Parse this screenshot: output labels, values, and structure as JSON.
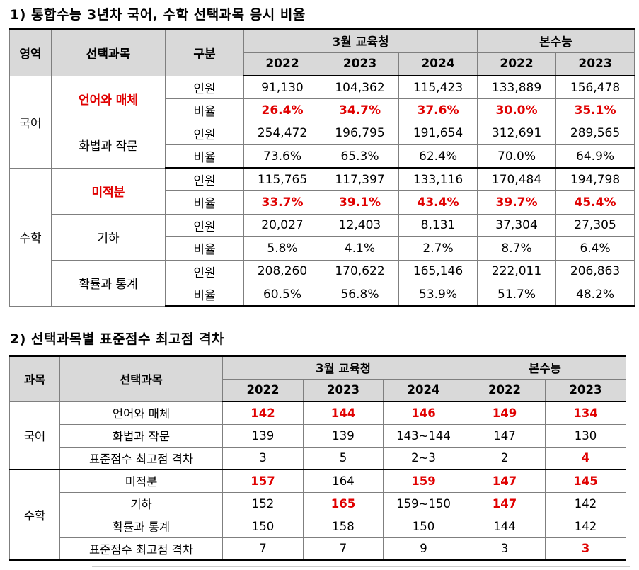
{
  "section1": {
    "title": "1) 통합수능 3년차 국어, 수학 선택과목 응시 비율",
    "headers": {
      "area": "영역",
      "subject": "선택과목",
      "type": "구분",
      "group_march": "3월 교육청",
      "group_csat": "본수능",
      "years": [
        "2022",
        "2023",
        "2024",
        "2022",
        "2023"
      ]
    },
    "korean": {
      "area": "국어",
      "subjects": [
        {
          "name": "언어와 매체",
          "highlight": true,
          "count_label": "인원",
          "counts": [
            "91,130",
            "104,362",
            "115,423",
            "133,889",
            "156,478"
          ],
          "ratio_label": "비율",
          "ratios": [
            "26.4%",
            "34.7%",
            "37.6%",
            "30.0%",
            "35.1%"
          ],
          "ratio_highlight": true
        },
        {
          "name": "화법과 작문",
          "highlight": false,
          "count_label": "인원",
          "counts": [
            "254,472",
            "196,795",
            "191,654",
            "312,691",
            "289,565"
          ],
          "ratio_label": "비율",
          "ratios": [
            "73.6%",
            "65.3%",
            "62.4%",
            "70.0%",
            "64.9%"
          ],
          "ratio_highlight": false
        }
      ]
    },
    "math": {
      "area": "수학",
      "subjects": [
        {
          "name": "미적분",
          "highlight": true,
          "count_label": "인원",
          "counts": [
            "115,765",
            "117,397",
            "133,116",
            "170,484",
            "194,798"
          ],
          "ratio_label": "비율",
          "ratios": [
            "33.7%",
            "39.1%",
            "43.4%",
            "39.7%",
            "45.4%"
          ],
          "ratio_highlight": true
        },
        {
          "name": "기하",
          "highlight": false,
          "count_label": "인원",
          "counts": [
            "20,027",
            "12,403",
            "8,131",
            "37,304",
            "27,305"
          ],
          "ratio_label": "비율",
          "ratios": [
            "5.8%",
            "4.1%",
            "2.7%",
            "8.7%",
            "6.4%"
          ],
          "ratio_highlight": false
        },
        {
          "name": "확률과 통계",
          "highlight": false,
          "count_label": "인원",
          "counts": [
            "208,260",
            "170,622",
            "165,146",
            "222,011",
            "206,863"
          ],
          "ratio_label": "비율",
          "ratios": [
            "60.5%",
            "56.8%",
            "53.9%",
            "51.7%",
            "48.2%"
          ],
          "ratio_highlight": false
        }
      ]
    }
  },
  "section2": {
    "title": "2) 선택과목별 표준점수 최고점 격차",
    "headers": {
      "area": "과목",
      "subject": "선택과목",
      "group_march": "3월 교육청",
      "group_csat": "본수능",
      "years": [
        "2022",
        "2023",
        "2024",
        "2022",
        "2023"
      ]
    },
    "korean": {
      "area": "국어",
      "rows": [
        {
          "name": "언어와 매체",
          "values": [
            "142",
            "144",
            "146",
            "149",
            "134"
          ],
          "red": [
            true,
            true,
            true,
            true,
            true
          ]
        },
        {
          "name": "화법과 작문",
          "values": [
            "139",
            "139",
            "143~144",
            "147",
            "130"
          ],
          "red": [
            false,
            false,
            false,
            false,
            false
          ]
        },
        {
          "name": "표준점수 최고점 격차",
          "values": [
            "3",
            "5",
            "2~3",
            "2",
            "4"
          ],
          "red": [
            false,
            false,
            false,
            false,
            true
          ]
        }
      ]
    },
    "math": {
      "area": "수학",
      "rows": [
        {
          "name": "미적분",
          "values": [
            "157",
            "164",
            "159",
            "147",
            "145"
          ],
          "red": [
            true,
            false,
            true,
            true,
            true
          ]
        },
        {
          "name": "기하",
          "values": [
            "152",
            "165",
            "159~150",
            "147",
            "142"
          ],
          "red": [
            false,
            true,
            false,
            true,
            false
          ]
        },
        {
          "name": "확률과 통계",
          "values": [
            "150",
            "158",
            "150",
            "144",
            "142"
          ],
          "red": [
            false,
            false,
            false,
            false,
            false
          ]
        },
        {
          "name": "표준점수 최고점 격차",
          "values": [
            "7",
            "7",
            "9",
            "3",
            "3"
          ],
          "red": [
            false,
            false,
            false,
            false,
            true
          ]
        }
      ]
    }
  },
  "colors": {
    "highlight": "#e00000",
    "header_bg": "#d9d9d9"
  }
}
